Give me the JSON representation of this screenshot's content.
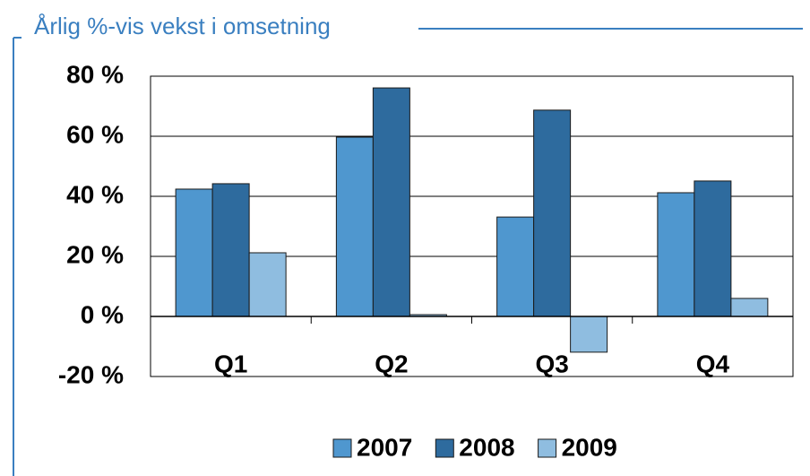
{
  "chart_data": {
    "type": "bar",
    "title": "Årlig %-vis vekst i omsetning",
    "categories": [
      "Q1",
      "Q2",
      "Q3",
      "Q4"
    ],
    "series": [
      {
        "name": "2007",
        "color": "#4f97cf",
        "values": [
          42.4,
          59.7,
          33.1,
          41.2
        ]
      },
      {
        "name": "2008",
        "color": "#2e6b9e",
        "values": [
          44.2,
          76.1,
          68.7,
          45.1
        ]
      },
      {
        "name": "2009",
        "color": "#8fbde0",
        "values": [
          21.2,
          0.6,
          -11.9,
          6.0
        ]
      }
    ],
    "ylim": [
      -20,
      80
    ],
    "yticks": [
      {
        "value": -20,
        "label": "-20 %"
      },
      {
        "value": 0,
        "label": "0 %"
      },
      {
        "value": 20,
        "label": "20 %"
      },
      {
        "value": 40,
        "label": "40 %"
      },
      {
        "value": 60,
        "label": "60 %"
      },
      {
        "value": 80,
        "label": "80 %"
      }
    ],
    "grid": true,
    "legend": "bottom"
  }
}
